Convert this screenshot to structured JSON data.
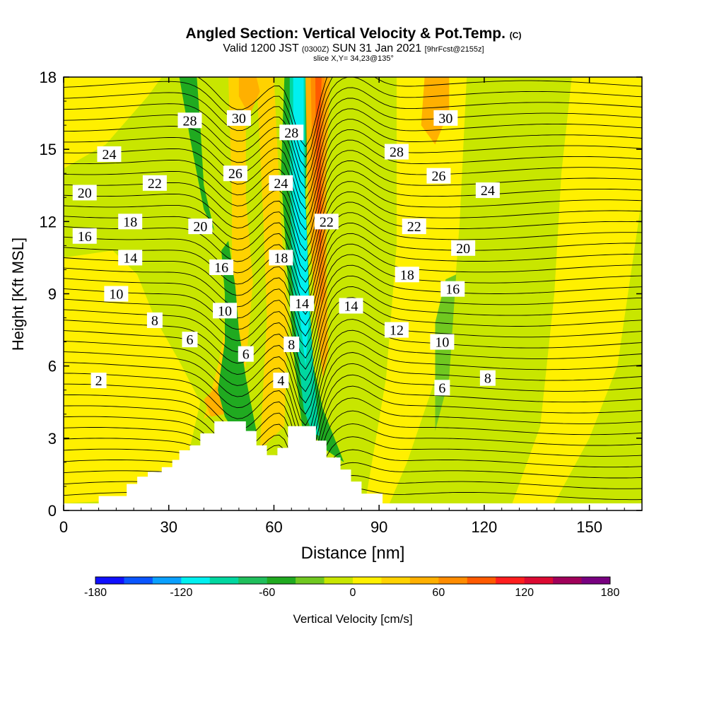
{
  "title": {
    "main": "Angled Section: Vertical Velocity & Pot.Temp.",
    "main_suffix": "(C)",
    "valid_prefix": "Valid 1200 JST",
    "valid_z": "(0300Z)",
    "valid_date": "SUN 31 Jan 2021",
    "fcst": "[9hrFcst@2155z]",
    "slice": "slice X,Y= 34,23@135°"
  },
  "chart_data": {
    "type": "heatmap",
    "xlabel": "Distance [nm]",
    "ylabel": "Height [Kft MSL]",
    "xlim": [
      0,
      165
    ],
    "ylim": [
      0,
      18
    ],
    "x_ticks": [
      0,
      30,
      60,
      90,
      120,
      150
    ],
    "y_ticks": [
      0,
      3,
      6,
      9,
      12,
      15,
      18
    ],
    "colorbar": {
      "label": "Vertical Velocity [cm/s]",
      "ticks": [
        -180,
        -120,
        -60,
        0,
        60,
        120,
        180
      ],
      "range": [
        -180,
        180
      ],
      "colors": [
        "#1010ff",
        "#0a55ff",
        "#0aa0ff",
        "#00f0f0",
        "#00d7a0",
        "#1fbf5c",
        "#20aa20",
        "#70c820",
        "#c8e600",
        "#fff000",
        "#ffd200",
        "#ffb000",
        "#ff8c00",
        "#ff5a00",
        "#ff1e1e",
        "#dc0a32",
        "#a0005a",
        "#780080"
      ]
    },
    "terrain_profile": [
      [
        10,
        0.6
      ],
      [
        18,
        1.1
      ],
      [
        21,
        1.4
      ],
      [
        24,
        1.6
      ],
      [
        28,
        1.8
      ],
      [
        31,
        2.1
      ],
      [
        33,
        2.5
      ],
      [
        36,
        2.7
      ],
      [
        39,
        3.2
      ],
      [
        43,
        3.7
      ],
      [
        50,
        3.7
      ],
      [
        52,
        3.3
      ],
      [
        55,
        2.7
      ],
      [
        58,
        2.3
      ],
      [
        61,
        2.6
      ],
      [
        64,
        3.5
      ],
      [
        70,
        3.5
      ],
      [
        72,
        2.9
      ],
      [
        75,
        2.2
      ],
      [
        79,
        1.7
      ],
      [
        82,
        1.2
      ],
      [
        85,
        0.7
      ],
      [
        91,
        0.6
      ]
    ],
    "isentrope_labels": [
      {
        "text": "2",
        "x": 10,
        "y": 5.4
      },
      {
        "text": "4",
        "x": 62,
        "y": 5.4
      },
      {
        "text": "6",
        "x": 36,
        "y": 7.1
      },
      {
        "text": "6",
        "x": 52,
        "y": 6.5
      },
      {
        "text": "6",
        "x": 108,
        "y": 5.1
      },
      {
        "text": "8",
        "x": 26,
        "y": 7.9
      },
      {
        "text": "8",
        "x": 65,
        "y": 6.9
      },
      {
        "text": "8",
        "x": 121,
        "y": 5.5
      },
      {
        "text": "10",
        "x": 15,
        "y": 9.0
      },
      {
        "text": "10",
        "x": 46,
        "y": 8.3
      },
      {
        "text": "10",
        "x": 108,
        "y": 7.0
      },
      {
        "text": "12",
        "x": 95,
        "y": 7.5
      },
      {
        "text": "14",
        "x": 19,
        "y": 10.5
      },
      {
        "text": "14",
        "x": 68,
        "y": 8.6
      },
      {
        "text": "14",
        "x": 82,
        "y": 8.5
      },
      {
        "text": "16",
        "x": 6,
        "y": 11.4
      },
      {
        "text": "16",
        "x": 45,
        "y": 10.1
      },
      {
        "text": "16",
        "x": 111,
        "y": 9.2
      },
      {
        "text": "18",
        "x": 19,
        "y": 12.0
      },
      {
        "text": "18",
        "x": 62,
        "y": 10.5
      },
      {
        "text": "18",
        "x": 98,
        "y": 9.8
      },
      {
        "text": "20",
        "x": 6,
        "y": 13.2
      },
      {
        "text": "20",
        "x": 39,
        "y": 11.8
      },
      {
        "text": "20",
        "x": 114,
        "y": 10.9
      },
      {
        "text": "22",
        "x": 26,
        "y": 13.6
      },
      {
        "text": "22",
        "x": 75,
        "y": 12.0
      },
      {
        "text": "22",
        "x": 100,
        "y": 11.8
      },
      {
        "text": "24",
        "x": 13,
        "y": 14.8
      },
      {
        "text": "24",
        "x": 62,
        "y": 13.6
      },
      {
        "text": "24",
        "x": 121,
        "y": 13.3
      },
      {
        "text": "26",
        "x": 49,
        "y": 14.0
      },
      {
        "text": "26",
        "x": 107,
        "y": 13.9
      },
      {
        "text": "28",
        "x": 36,
        "y": 16.2
      },
      {
        "text": "28",
        "x": 65,
        "y": 15.7
      },
      {
        "text": "28",
        "x": 95,
        "y": 14.9
      },
      {
        "text": "30",
        "x": 50,
        "y": 16.3
      },
      {
        "text": "30",
        "x": 109,
        "y": 16.3
      }
    ]
  }
}
